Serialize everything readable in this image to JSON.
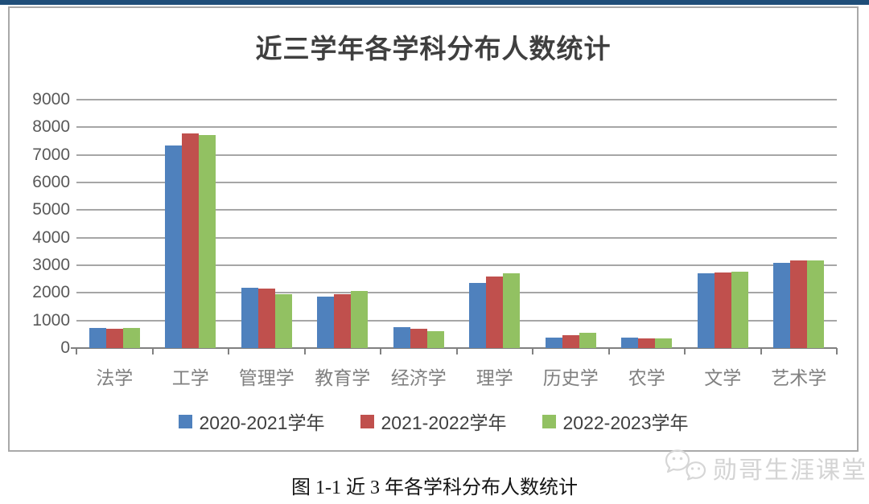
{
  "page": {
    "top_bar_color": "#1f4e79",
    "caption": "图 1-1 近 3 年各学科分布人数统计",
    "watermark_text": "勋哥生涯课堂"
  },
  "chart_data": {
    "type": "bar",
    "title": "近三学年各学科分布人数统计",
    "categories": [
      "法学",
      "工学",
      "管理学",
      "教育学",
      "经济学",
      "理学",
      "历史学",
      "农学",
      "文学",
      "艺术学"
    ],
    "series": [
      {
        "name": "2020-2021学年",
        "color": "#4F81BD",
        "values": [
          720,
          7330,
          2190,
          1850,
          770,
          2350,
          390,
          380,
          2700,
          3090
        ]
      },
      {
        "name": "2021-2022学年",
        "color": "#C0504D",
        "values": [
          700,
          7780,
          2160,
          1950,
          700,
          2600,
          460,
          360,
          2750,
          3180
        ]
      },
      {
        "name": "2022-2023学年",
        "color": "#92C162",
        "values": [
          730,
          7720,
          1960,
          2070,
          610,
          2700,
          540,
          340,
          2770,
          3170
        ]
      }
    ],
    "ylim": [
      0,
      9000
    ],
    "yticks": [
      0,
      1000,
      2000,
      3000,
      4000,
      5000,
      6000,
      7000,
      8000,
      9000
    ],
    "grid": "horizontal-only",
    "gridline_color": "#a6a6a6",
    "axis_color": "#808080",
    "legend_position": "bottom"
  }
}
